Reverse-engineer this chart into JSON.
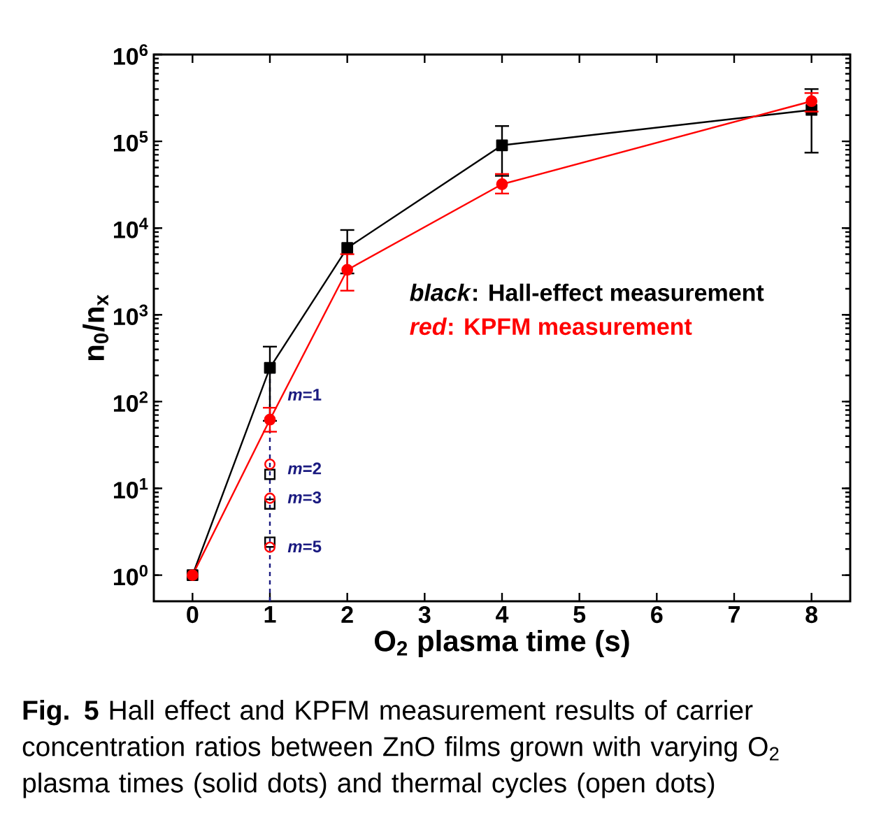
{
  "chart_data": {
    "type": "line",
    "xlabel": "O$_{2}$ plasma time (s)",
    "ylabel": "n$_{0}$/n$_{x}$",
    "log": "y",
    "xlim": [
      -0.5,
      8.5
    ],
    "xticks": [
      0,
      1,
      2,
      3,
      4,
      5,
      6,
      7,
      8
    ],
    "ylim": [
      0.5,
      1000000
    ],
    "yticks": [
      {
        "value": 1,
        "label": "10$^{0}$"
      },
      {
        "value": 10,
        "label": "10$^{1}$"
      },
      {
        "value": 100,
        "label": "10$^{2}$"
      },
      {
        "value": 1000,
        "label": "10$^{3}$"
      },
      {
        "value": 10000,
        "label": "10$^{4}$"
      },
      {
        "value": 100000,
        "label": "10$^{5}$"
      },
      {
        "value": 1000000,
        "label": "10$^{6}$"
      }
    ],
    "series": [
      {
        "color": "#1a1a80",
        "line_style": "dashed",
        "marker": "none",
        "x": [
          1,
          1
        ],
        "values": [
          0.5,
          245
        ]
      },
      {
        "name": "*black*: Hall-effect measurement",
        "color": "#000000",
        "marker": "square",
        "line_style": "solid",
        "x": [
          0,
          1,
          2,
          4,
          8
        ],
        "values": [
          1,
          245,
          5900,
          90000,
          230000
        ],
        "errors": [
          null,
          [
            60,
            430
          ],
          [
            3000,
            9500
          ],
          [
            40000,
            150000
          ],
          [
            74000,
            400000
          ]
        ]
      },
      {
        "name": "*red*: KPFM measurement",
        "color": "#ff0000",
        "marker": "circle",
        "line_style": "solid",
        "x": [
          0,
          1,
          2,
          4,
          8
        ],
        "values": [
          1,
          62,
          3300,
          32000,
          290000
        ],
        "errors": [
          null,
          [
            45,
            85
          ],
          [
            1900,
            5000
          ],
          [
            25000,
            42000
          ],
          [
            220000,
            360000
          ]
        ]
      },
      {
        "type": "scatter",
        "color": "#000000",
        "marker": "square",
        "x": [
          1,
          1,
          1
        ],
        "values": [
          14.5,
          6.6,
          2.4
        ]
      },
      {
        "type": "scatter",
        "color": "#ff0000",
        "marker": "circle",
        "x": [
          1,
          1,
          1
        ],
        "values": [
          19,
          7.7,
          2.1
        ]
      }
    ],
    "annotations": [
      "*m*=1",
      "*m*=2",
      "*m*=3",
      "*m*=5",
      "**Fig. 5** Hall effect and KPFM measurement results of carrier concentration ratios between ZnO films grown with varying O$_{2}$ plasma times (solid dots) and thermal cycles (open dots)"
    ]
  }
}
